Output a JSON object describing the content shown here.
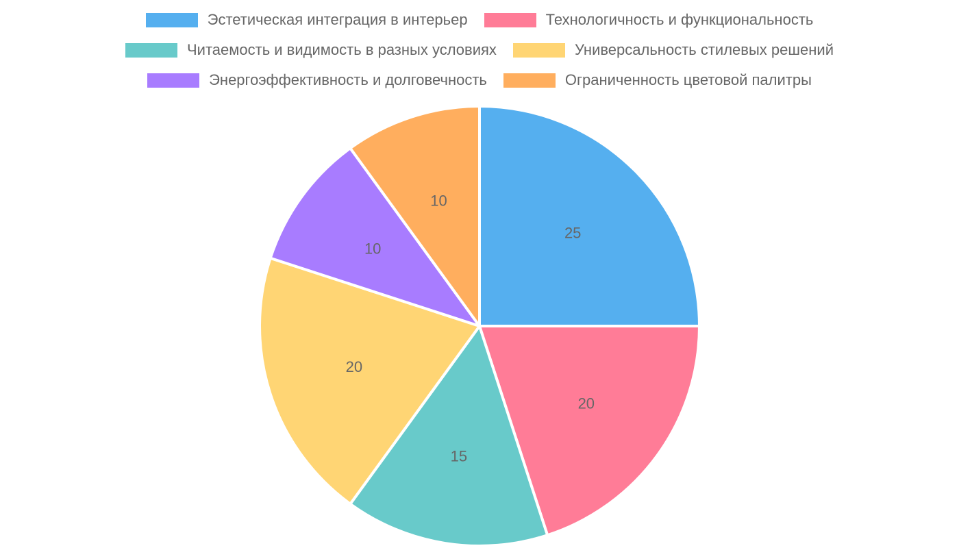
{
  "chart_data": {
    "type": "pie",
    "categories": [
      "Эстетическая интеграция в интерьер",
      "Технологичность и функциональность",
      "Читаемость и видимость в разных условиях",
      "Универсальность стилевых решений",
      "Энергоэффективность и долговечность",
      "Ограниченность цветовой палитры"
    ],
    "values": [
      25,
      20,
      15,
      20,
      10,
      10
    ],
    "value_labels": [
      "25",
      "20",
      "15",
      "20",
      "10",
      "10"
    ],
    "colors": [
      "#55AFEF",
      "#FF7C97",
      "#68CACA",
      "#FFD574",
      "#A87CFF",
      "#FFAE5E"
    ],
    "legend_position": "top",
    "start_angle": "12 o'clock, clockwise"
  }
}
